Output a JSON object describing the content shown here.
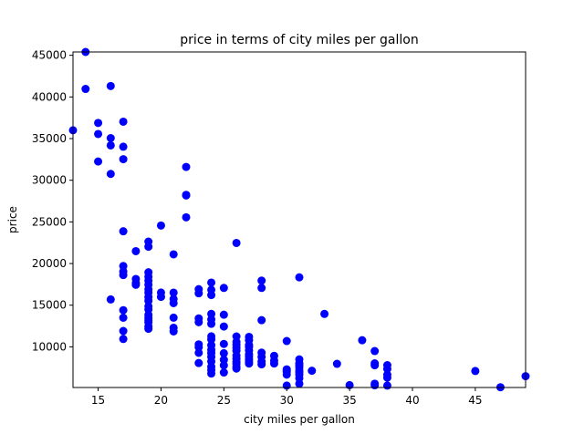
{
  "chart_data": {
    "type": "scatter",
    "title": "price in terms of city miles per gallon",
    "xlabel": "city miles per gallon",
    "ylabel": "price",
    "xlim": [
      13,
      49
    ],
    "ylim": [
      5118,
      45400
    ],
    "xticks": [
      15,
      20,
      25,
      30,
      35,
      40,
      45
    ],
    "yticks": [
      10000,
      15000,
      20000,
      25000,
      30000,
      35000,
      40000,
      45000
    ],
    "xtick_labels": [
      "15",
      "20",
      "25",
      "30",
      "35",
      "40",
      "45"
    ],
    "ytick_labels": [
      "10000",
      "15000",
      "20000",
      "25000",
      "30000",
      "35000",
      "40000",
      "45000"
    ],
    "grid": false,
    "legend": "none",
    "marker_color": "#0000ff",
    "series": [
      {
        "points": [
          [
            13,
            36000
          ],
          [
            14,
            45400
          ],
          [
            14,
            40960
          ],
          [
            15,
            36880
          ],
          [
            15,
            35550
          ],
          [
            15,
            32250
          ],
          [
            16,
            41315
          ],
          [
            16,
            35056
          ],
          [
            16,
            34184
          ],
          [
            16,
            30760
          ],
          [
            16,
            15690
          ],
          [
            17,
            37028
          ],
          [
            17,
            34028
          ],
          [
            17,
            32528
          ],
          [
            17,
            23875
          ],
          [
            17,
            19700
          ],
          [
            17,
            19045
          ],
          [
            17,
            18620
          ],
          [
            17,
            14399
          ],
          [
            17,
            13495
          ],
          [
            17,
            11900
          ],
          [
            17,
            10945
          ],
          [
            18,
            21485
          ],
          [
            18,
            18150
          ],
          [
            18,
            17669
          ],
          [
            18,
            17450
          ],
          [
            19,
            22625
          ],
          [
            19,
            22018
          ],
          [
            19,
            18950
          ],
          [
            19,
            18420
          ],
          [
            19,
            17950
          ],
          [
            19,
            17450
          ],
          [
            19,
            16900
          ],
          [
            19,
            16500
          ],
          [
            19,
            15985
          ],
          [
            19,
            15510
          ],
          [
            19,
            14869
          ],
          [
            19,
            14489
          ],
          [
            19,
            13845
          ],
          [
            19,
            13499
          ],
          [
            19,
            13200
          ],
          [
            19,
            12945
          ],
          [
            19,
            12440
          ],
          [
            19,
            12170
          ],
          [
            20,
            24565
          ],
          [
            20,
            16515
          ],
          [
            20,
            15998
          ],
          [
            21,
            21105
          ],
          [
            21,
            16503
          ],
          [
            21,
            15750
          ],
          [
            21,
            15250
          ],
          [
            21,
            13499
          ],
          [
            21,
            12290
          ],
          [
            21,
            11850
          ],
          [
            22,
            31600
          ],
          [
            22,
            28248
          ],
          [
            22,
            28176
          ],
          [
            22,
            25552
          ],
          [
            23,
            16925
          ],
          [
            23,
            16430
          ],
          [
            23,
            13415
          ],
          [
            23,
            12964
          ],
          [
            23,
            10295
          ],
          [
            23,
            9959
          ],
          [
            23,
            9279
          ],
          [
            23,
            8058
          ],
          [
            24,
            17710
          ],
          [
            24,
            16845
          ],
          [
            24,
            16220
          ],
          [
            24,
            13950
          ],
          [
            24,
            13295
          ],
          [
            24,
            12764
          ],
          [
            24,
            11259
          ],
          [
            24,
            10898
          ],
          [
            24,
            10198
          ],
          [
            24,
            9639
          ],
          [
            24,
            9258
          ],
          [
            24,
            8778
          ],
          [
            24,
            8238
          ],
          [
            24,
            7609
          ],
          [
            24,
            7198
          ],
          [
            24,
            6795
          ],
          [
            25,
            17075
          ],
          [
            25,
            13860
          ],
          [
            25,
            12440
          ],
          [
            25,
            10345
          ],
          [
            25,
            9233
          ],
          [
            25,
            8449
          ],
          [
            25,
            7775
          ],
          [
            25,
            6918
          ],
          [
            26,
            22470
          ],
          [
            26,
            11248
          ],
          [
            26,
            10595
          ],
          [
            26,
            10245
          ],
          [
            26,
            9895
          ],
          [
            26,
            9538
          ],
          [
            26,
            8948
          ],
          [
            26,
            8558
          ],
          [
            26,
            8195
          ],
          [
            26,
            7975
          ],
          [
            26,
            7603
          ],
          [
            26,
            7395
          ],
          [
            27,
            11199
          ],
          [
            27,
            10795
          ],
          [
            27,
            10198
          ],
          [
            27,
            9995
          ],
          [
            27,
            9549
          ],
          [
            27,
            9095
          ],
          [
            27,
            8845
          ],
          [
            27,
            8495
          ],
          [
            27,
            8249
          ],
          [
            27,
            7995
          ],
          [
            28,
            17950
          ],
          [
            28,
            17075
          ],
          [
            28,
            13200
          ],
          [
            28,
            9298
          ],
          [
            28,
            8785
          ],
          [
            28,
            8238
          ],
          [
            28,
            7898
          ],
          [
            29,
            8921
          ],
          [
            29,
            8358
          ],
          [
            29,
            7999
          ],
          [
            30,
            10698
          ],
          [
            30,
            7299
          ],
          [
            30,
            7129
          ],
          [
            30,
            6989
          ],
          [
            30,
            6669
          ],
          [
            30,
            5348
          ],
          [
            31,
            18344
          ],
          [
            31,
            8495
          ],
          [
            31,
            8013
          ],
          [
            31,
            7738
          ],
          [
            31,
            7499
          ],
          [
            31,
            7126
          ],
          [
            31,
            6938
          ],
          [
            31,
            6649
          ],
          [
            31,
            6229
          ],
          [
            31,
            5572
          ],
          [
            32,
            7129
          ],
          [
            33,
            13950
          ],
          [
            34,
            7957
          ],
          [
            35,
            5399
          ],
          [
            36,
            10795
          ],
          [
            37,
            9495
          ],
          [
            37,
            8013
          ],
          [
            37,
            7788
          ],
          [
            37,
            5572
          ],
          [
            37,
            5389
          ],
          [
            38,
            7799
          ],
          [
            38,
            7349
          ],
          [
            38,
            6649
          ],
          [
            38,
            6295
          ],
          [
            38,
            5348
          ],
          [
            45,
            7099
          ],
          [
            47,
            5151
          ],
          [
            49,
            6479
          ]
        ]
      }
    ]
  }
}
